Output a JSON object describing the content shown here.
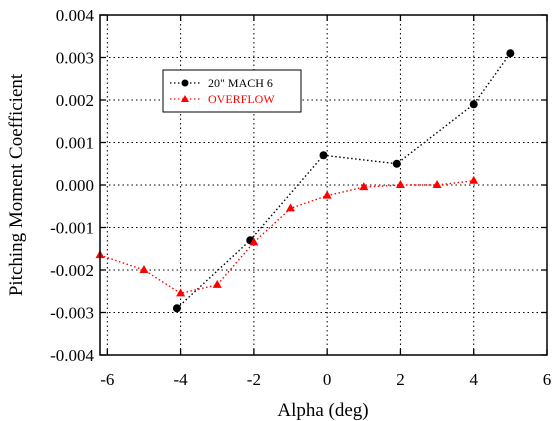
{
  "chart_data": {
    "type": "line",
    "title": "",
    "xlabel": "Alpha (deg)",
    "ylabel": "Pitching Moment Coefficient",
    "xlim": [
      -6.2,
      6
    ],
    "ylim": [
      -0.004,
      0.004
    ],
    "x_ticks": [
      "-6",
      "-4",
      "-2",
      "0",
      "2",
      "4",
      "6"
    ],
    "x_tick_values": [
      -6,
      -4,
      -2,
      0,
      2,
      4,
      6
    ],
    "y_ticks": [
      "0.004",
      "0.003",
      "0.002",
      "0.001",
      "0.000",
      "-0.001",
      "-0.002",
      "-0.003",
      "-0.004"
    ],
    "y_tick_values": [
      0.004,
      0.003,
      0.002,
      0.001,
      0.0,
      -0.001,
      -0.002,
      -0.003,
      -0.004
    ],
    "grid": true,
    "legend_position": "top-left",
    "series": [
      {
        "name": "20\" MACH 6",
        "color": "#000000",
        "marker": "circle",
        "x": [
          -4.1,
          -2.1,
          -0.1,
          1.9,
          4.0,
          5.0
        ],
        "y": [
          -0.0029,
          -0.0013,
          0.0007,
          0.0005,
          0.0019,
          0.0031
        ]
      },
      {
        "name": "OVERFLOW",
        "color": "#ff0000",
        "marker": "triangle",
        "x": [
          -6.2,
          -5.0,
          -4.0,
          -3.0,
          -2.0,
          -1.0,
          0.0,
          1.0,
          2.0,
          3.0,
          4.0
        ],
        "y": [
          -0.00165,
          -0.002,
          -0.00255,
          -0.00235,
          -0.00135,
          -0.00055,
          -0.00025,
          -5e-05,
          0.0,
          0.0,
          0.0001
        ]
      }
    ]
  }
}
